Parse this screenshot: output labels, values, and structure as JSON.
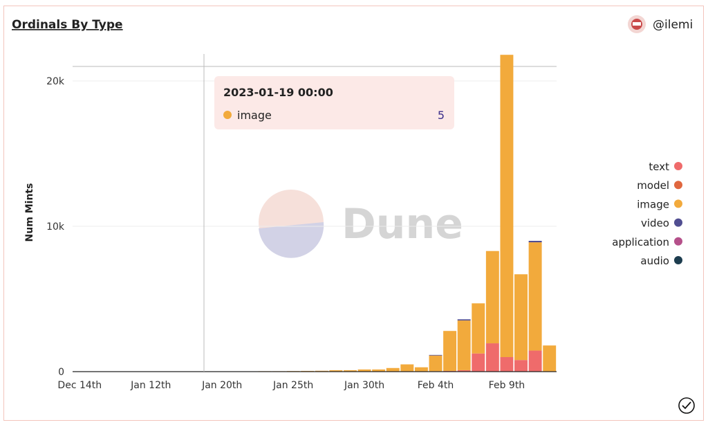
{
  "chart_data": {
    "type": "stacked_bar",
    "title": "Ordinals By Type",
    "author": "@ilemi",
    "watermark": "Dune",
    "y_label": "Num Mints",
    "categories": [
      "Dec 14th",
      null,
      null,
      null,
      null,
      "Jan 12th",
      null,
      null,
      null,
      null,
      "Jan 20th",
      null,
      null,
      null,
      null,
      "Jan 25th",
      null,
      null,
      null,
      null,
      "Jan 30th",
      null,
      null,
      null,
      null,
      "Feb 4th",
      null,
      null,
      null,
      null,
      "Feb 9th",
      null,
      null,
      null
    ],
    "series": [
      {
        "name": "text",
        "color": "#ef6b6b",
        "values": [
          0,
          0,
          0,
          0,
          0,
          0,
          0,
          0,
          0,
          0,
          0,
          0,
          0,
          0,
          0,
          0,
          0,
          0,
          0,
          0,
          0,
          0,
          0,
          0,
          0,
          30,
          50,
          100,
          1250,
          1950,
          1000,
          800,
          1450,
          0
        ]
      },
      {
        "name": "model",
        "color": "#e0673f",
        "values": [
          0,
          0,
          0,
          0,
          0,
          0,
          0,
          0,
          0,
          0,
          0,
          0,
          0,
          0,
          0,
          0,
          0,
          0,
          0,
          0,
          0,
          0,
          0,
          0,
          0,
          0,
          0,
          0,
          0,
          0,
          0,
          0,
          0,
          0
        ]
      },
      {
        "name": "image",
        "color": "#f2aa3c",
        "values": [
          2,
          2,
          2,
          3,
          3,
          3,
          4,
          4,
          5,
          5,
          10,
          20,
          20,
          30,
          30,
          40,
          50,
          60,
          100,
          100,
          150,
          150,
          250,
          500,
          300,
          1080,
          2750,
          3420,
          3450,
          6350,
          20800,
          5900,
          7450,
          1800
        ]
      },
      {
        "name": "video",
        "color": "#514e91",
        "values": [
          0,
          0,
          0,
          0,
          0,
          0,
          0,
          0,
          0,
          0,
          0,
          0,
          0,
          0,
          0,
          0,
          0,
          0,
          0,
          0,
          0,
          0,
          0,
          0,
          0,
          40,
          0,
          80,
          0,
          0,
          0,
          0,
          100,
          0
        ]
      },
      {
        "name": "application",
        "color": "#b5508a",
        "values": [
          0,
          0,
          0,
          0,
          0,
          0,
          0,
          0,
          0,
          0,
          0,
          0,
          0,
          0,
          0,
          0,
          0,
          0,
          0,
          0,
          0,
          0,
          0,
          0,
          0,
          0,
          0,
          0,
          0,
          0,
          0,
          0,
          0,
          0
        ]
      },
      {
        "name": "audio",
        "color": "#1d3d4f",
        "values": [
          0,
          0,
          0,
          0,
          0,
          0,
          0,
          0,
          0,
          0,
          0,
          0,
          0,
          0,
          0,
          0,
          0,
          0,
          0,
          0,
          0,
          0,
          0,
          0,
          0,
          0,
          0,
          0,
          0,
          0,
          0,
          0,
          0,
          0
        ]
      }
    ],
    "ylim": [
      0,
      21000
    ],
    "yticks": [
      0,
      {
        "value": 10000,
        "label": "10k"
      },
      {
        "value": 20000,
        "label": "20k"
      }
    ],
    "grid": true,
    "legend": "right",
    "tooltip": {
      "title": "2023-01-19 00:00",
      "series": "image",
      "value": 5
    }
  }
}
